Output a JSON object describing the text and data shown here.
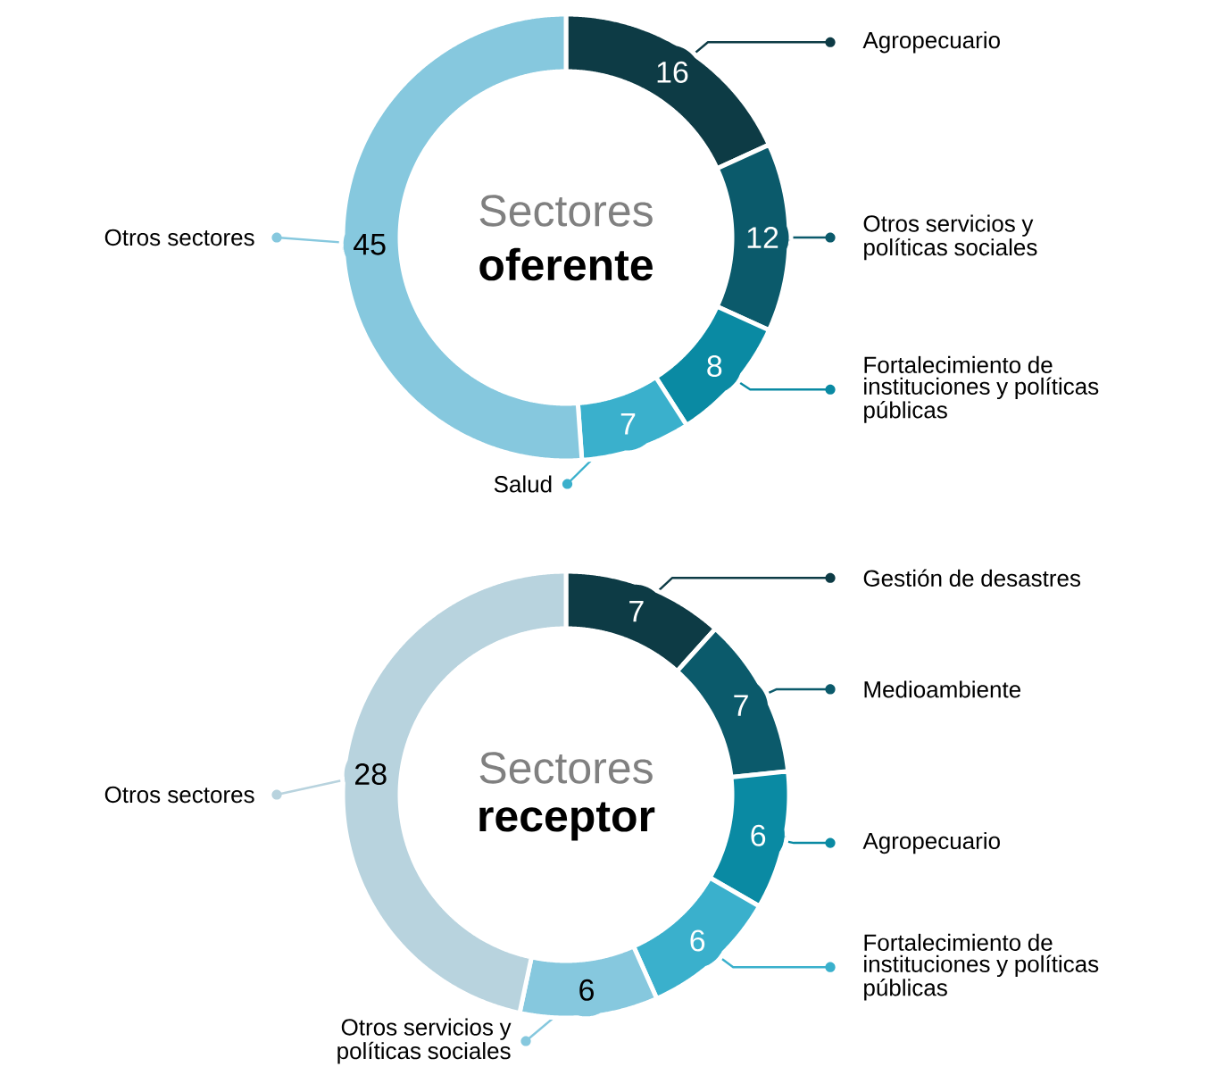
{
  "chart_data": [
    {
      "type": "donut",
      "title": "Sectores",
      "subtitle": "oferente",
      "data_labels": true,
      "legend": "right",
      "categories": [
        "Agropecuario",
        "Otros servicios y políticas sociales",
        "Fortalecimiento de instituciones y políticas públicas",
        "Salud",
        "Otros sectores"
      ],
      "values": [
        16,
        12,
        8,
        7,
        45
      ],
      "colors": [
        "#0d3b45",
        "#0b5a6b",
        "#0a8aa3",
        "#3ab0cc",
        "#86c8de"
      ]
    },
    {
      "type": "donut",
      "title": "Sectores",
      "subtitle": "receptor",
      "data_labels": true,
      "legend": "right",
      "categories": [
        "Gestión de desastres",
        "Medioambiente",
        "Agropecuario",
        "Fortalecimiento de instituciones y políticas públicas",
        "Otros servicios y políticas sociales",
        "Otros sectores"
      ],
      "values": [
        7,
        7,
        6,
        6,
        6,
        28
      ],
      "colors": [
        "#0d3b45",
        "#0b5a6b",
        "#0a8aa3",
        "#3ab0cc",
        "#86c8de",
        "#b8d3de"
      ]
    }
  ]
}
